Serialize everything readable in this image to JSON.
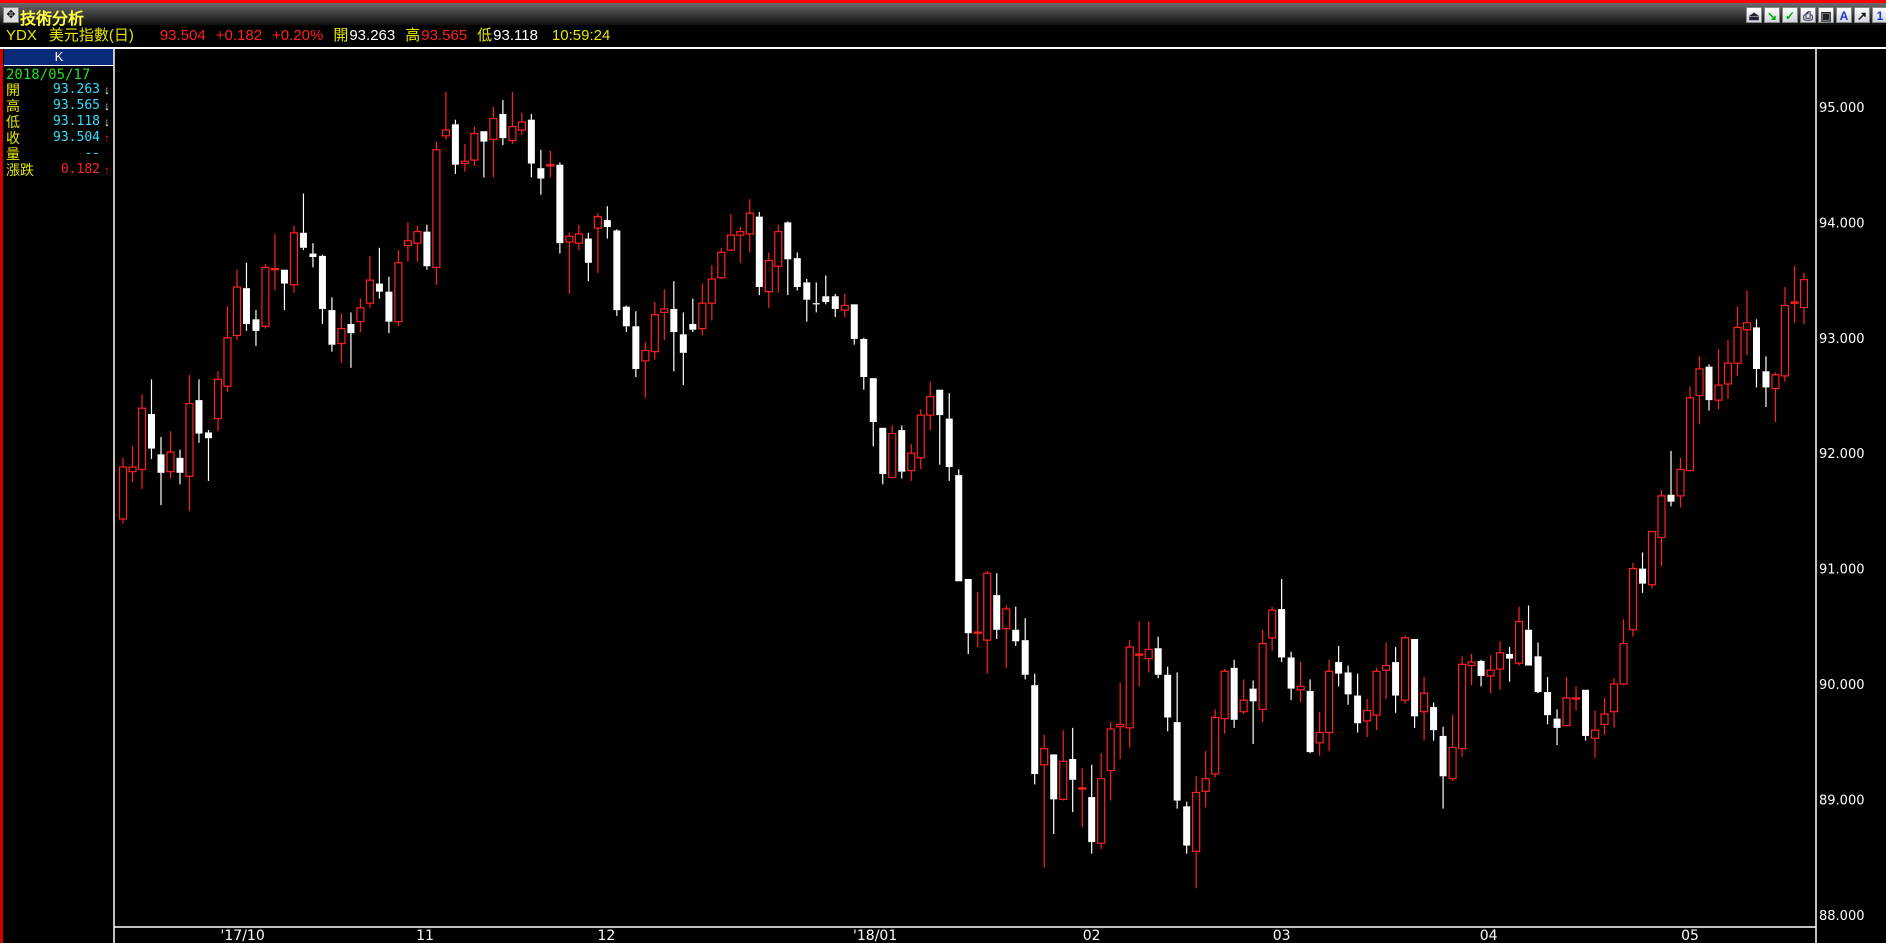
{
  "window": {
    "title": "技術分析"
  },
  "toolbar": {
    "icons": [
      "insert-icon",
      "trend-icon",
      "add-indicator-icon",
      "print-icon",
      "save-icon",
      "font-icon",
      "draw-icon",
      "number-one-icon"
    ],
    "font_glyph": "A",
    "one_glyph": "1"
  },
  "quote": {
    "symbol": "YDX",
    "name": "美元指數(日)",
    "last": "93.504",
    "change": "+0.182",
    "change_pct": "+0.20%",
    "open_label": "開",
    "open": "93.263",
    "high_label": "高",
    "high": "93.565",
    "low_label": "低",
    "low": "93.118",
    "time": "10:59:24"
  },
  "panel": {
    "header": "K",
    "date": "2018/05/17",
    "rows": [
      {
        "label": "開",
        "value": "93.263",
        "arrow": "↓"
      },
      {
        "label": "高",
        "value": "93.565",
        "arrow": "↓"
      },
      {
        "label": "低",
        "value": "93.118",
        "arrow": "↓"
      },
      {
        "label": "收",
        "value": "93.504",
        "arrow": "↑"
      },
      {
        "label": "量",
        "value": "--",
        "arrow": ""
      },
      {
        "label": "漲跌",
        "value": "0.182",
        "arrow": "↑"
      }
    ]
  },
  "colors": {
    "up": "#ff2020",
    "down": "#ffffff",
    "background": "#000000",
    "accent": "#e6e600"
  },
  "chart_data": {
    "type": "candlestick",
    "ylim": [
      88,
      95.5
    ],
    "y_ticks": [
      "95.000",
      "94.000",
      "93.000",
      "92.000",
      "91.000",
      "90.000",
      "89.000",
      "88.000"
    ],
    "x_ticks": [
      {
        "label": "'17/10",
        "index": 12.6
      },
      {
        "label": "11",
        "index": 31.8
      },
      {
        "label": "12",
        "index": 50.9
      },
      {
        "label": "'18/01",
        "index": 79.2
      },
      {
        "label": "02",
        "index": 102
      },
      {
        "label": "03",
        "index": 122
      },
      {
        "label": "04",
        "index": 143.8
      },
      {
        "label": "05",
        "index": 165
      }
    ],
    "ohlc_fields": [
      "open",
      "high",
      "low",
      "close"
    ],
    "ohlc": [
      [
        91.43,
        91.96,
        91.39,
        91.88
      ],
      [
        91.84,
        92.06,
        91.75,
        91.88
      ],
      [
        91.86,
        92.51,
        91.69,
        92.39
      ],
      [
        92.34,
        92.64,
        91.95,
        92.04
      ],
      [
        91.99,
        92.14,
        91.55,
        91.83
      ],
      [
        91.84,
        92.19,
        91.78,
        92.01
      ],
      [
        91.96,
        92.03,
        91.73,
        91.83
      ],
      [
        91.8,
        92.68,
        91.5,
        92.43
      ],
      [
        92.46,
        92.64,
        92.09,
        92.17
      ],
      [
        92.18,
        92.2,
        91.76,
        92.13
      ],
      [
        92.3,
        92.71,
        92.19,
        92.64
      ],
      [
        92.58,
        93.27,
        92.53,
        93.0
      ],
      [
        93.02,
        93.59,
        92.98,
        93.44
      ],
      [
        93.43,
        93.65,
        93.06,
        93.12
      ],
      [
        93.16,
        93.24,
        92.93,
        93.06
      ],
      [
        93.1,
        93.64,
        93.08,
        93.61
      ],
      [
        93.59,
        93.9,
        93.41,
        93.6
      ],
      [
        93.59,
        93.59,
        93.24,
        93.47
      ],
      [
        93.46,
        93.97,
        93.39,
        93.91
      ],
      [
        93.91,
        94.25,
        93.76,
        93.78
      ],
      [
        93.73,
        93.82,
        93.61,
        93.7
      ],
      [
        93.71,
        93.72,
        93.12,
        93.25
      ],
      [
        93.24,
        93.35,
        92.88,
        92.94
      ],
      [
        92.95,
        93.21,
        92.78,
        93.08
      ],
      [
        93.12,
        93.22,
        92.74,
        93.04
      ],
      [
        93.14,
        93.34,
        93.05,
        93.26
      ],
      [
        93.3,
        93.71,
        93.26,
        93.5
      ],
      [
        93.47,
        93.78,
        93.34,
        93.4
      ],
      [
        93.4,
        93.53,
        93.04,
        93.14
      ],
      [
        93.14,
        93.76,
        93.1,
        93.65
      ],
      [
        93.8,
        94.0,
        93.66,
        93.84
      ],
      [
        93.82,
        93.97,
        93.66,
        93.92
      ],
      [
        93.92,
        93.98,
        93.59,
        93.62
      ],
      [
        93.61,
        94.7,
        93.46,
        94.63
      ],
      [
        94.75,
        95.13,
        94.72,
        94.8
      ],
      [
        94.85,
        94.89,
        94.42,
        94.5
      ],
      [
        94.51,
        94.68,
        94.44,
        94.53
      ],
      [
        94.54,
        94.83,
        94.49,
        94.77
      ],
      [
        94.79,
        94.79,
        94.39,
        94.7
      ],
      [
        94.72,
        95.0,
        94.39,
        94.9
      ],
      [
        94.94,
        95.06,
        94.67,
        94.73
      ],
      [
        94.71,
        95.13,
        94.68,
        94.83
      ],
      [
        94.8,
        94.95,
        94.76,
        94.87
      ],
      [
        94.89,
        94.94,
        94.39,
        94.51
      ],
      [
        94.47,
        94.63,
        94.24,
        94.38
      ],
      [
        94.49,
        94.62,
        94.39,
        94.5
      ],
      [
        94.5,
        94.52,
        93.73,
        93.82
      ],
      [
        93.83,
        93.91,
        93.38,
        93.88
      ],
      [
        93.82,
        93.98,
        93.76,
        93.9
      ],
      [
        93.86,
        93.91,
        93.49,
        93.65
      ],
      [
        93.95,
        94.08,
        93.56,
        94.05
      ],
      [
        94.02,
        94.14,
        93.86,
        93.96
      ],
      [
        93.93,
        93.94,
        93.19,
        93.24
      ],
      [
        93.27,
        93.28,
        93.05,
        93.1
      ],
      [
        93.1,
        93.23,
        92.66,
        92.73
      ],
      [
        92.8,
        92.96,
        92.48,
        92.89
      ],
      [
        92.88,
        93.31,
        92.81,
        93.2
      ],
      [
        93.22,
        93.42,
        92.98,
        93.25
      ],
      [
        93.25,
        93.49,
        92.71,
        93.05
      ],
      [
        93.03,
        93.22,
        92.59,
        92.87
      ],
      [
        93.12,
        93.34,
        93.05,
        93.07
      ],
      [
        93.08,
        93.47,
        93.02,
        93.3
      ],
      [
        93.3,
        93.63,
        93.15,
        93.51
      ],
      [
        93.52,
        93.78,
        93.51,
        93.74
      ],
      [
        93.76,
        94.07,
        93.76,
        93.89
      ],
      [
        93.89,
        93.96,
        93.65,
        93.92
      ],
      [
        93.9,
        94.2,
        93.74,
        94.08
      ],
      [
        94.05,
        94.09,
        93.37,
        93.44
      ],
      [
        93.4,
        93.74,
        93.26,
        93.67
      ],
      [
        93.62,
        93.98,
        93.39,
        93.92
      ],
      [
        94.0,
        94.01,
        93.37,
        93.68
      ],
      [
        93.69,
        93.74,
        93.41,
        93.44
      ],
      [
        93.48,
        93.51,
        93.14,
        93.33
      ],
      [
        93.3,
        93.48,
        93.22,
        93.29
      ],
      [
        93.36,
        93.54,
        93.29,
        93.31
      ],
      [
        93.36,
        93.38,
        93.18,
        93.25
      ],
      [
        93.24,
        93.38,
        93.18,
        93.28
      ],
      [
        93.29,
        93.29,
        92.94,
        92.99
      ],
      [
        92.99,
        93.0,
        92.55,
        92.66
      ],
      [
        92.65,
        92.65,
        92.06,
        92.27
      ],
      [
        92.22,
        92.22,
        91.73,
        91.82
      ],
      [
        91.79,
        92.24,
        91.78,
        92.17
      ],
      [
        92.2,
        92.24,
        91.78,
        91.84
      ],
      [
        91.85,
        92.08,
        91.76,
        92.0
      ],
      [
        91.96,
        92.38,
        91.86,
        92.33
      ],
      [
        92.33,
        92.62,
        92.2,
        92.49
      ],
      [
        92.55,
        92.55,
        91.9,
        92.33
      ],
      [
        92.3,
        92.52,
        91.76,
        91.88
      ],
      [
        91.81,
        91.86,
        90.89,
        90.89
      ],
      [
        90.91,
        90.91,
        90.26,
        90.44
      ],
      [
        90.44,
        90.8,
        90.32,
        90.45
      ],
      [
        90.38,
        90.98,
        90.09,
        90.96
      ],
      [
        90.77,
        90.96,
        90.39,
        90.47
      ],
      [
        90.48,
        90.68,
        90.14,
        90.65
      ],
      [
        90.47,
        90.67,
        90.33,
        90.37
      ],
      [
        90.38,
        90.57,
        90.04,
        90.08
      ],
      [
        89.99,
        90.09,
        89.13,
        89.22
      ],
      [
        89.3,
        89.56,
        88.41,
        89.44
      ],
      [
        89.39,
        89.39,
        88.7,
        89.0
      ],
      [
        89.0,
        89.6,
        88.99,
        89.33
      ],
      [
        89.35,
        89.62,
        88.89,
        89.17
      ],
      [
        89.09,
        89.27,
        88.76,
        89.1
      ],
      [
        89.02,
        89.3,
        88.53,
        88.63
      ],
      [
        88.62,
        89.4,
        88.57,
        89.18
      ],
      [
        89.25,
        89.67,
        88.99,
        89.61
      ],
      [
        89.63,
        90.01,
        89.35,
        89.65
      ],
      [
        89.62,
        90.38,
        89.45,
        90.32
      ],
      [
        90.25,
        90.54,
        89.98,
        90.26
      ],
      [
        90.22,
        90.54,
        90.1,
        90.3
      ],
      [
        90.31,
        90.41,
        90.05,
        90.08
      ],
      [
        90.08,
        90.15,
        89.59,
        89.71
      ],
      [
        89.67,
        90.1,
        88.92,
        88.99
      ],
      [
        88.94,
        88.98,
        88.53,
        88.6
      ],
      [
        88.55,
        89.2,
        88.23,
        89.06
      ],
      [
        89.07,
        89.42,
        88.93,
        89.18
      ],
      [
        89.22,
        89.78,
        89.19,
        89.71
      ],
      [
        89.7,
        90.13,
        89.57,
        90.11
      ],
      [
        90.14,
        90.21,
        89.62,
        89.69
      ],
      [
        89.76,
        90.04,
        89.74,
        89.86
      ],
      [
        89.96,
        90.03,
        89.48,
        89.85
      ],
      [
        89.78,
        90.47,
        89.67,
        90.35
      ],
      [
        90.4,
        90.67,
        90.29,
        90.64
      ],
      [
        90.65,
        90.91,
        90.19,
        90.23
      ],
      [
        90.23,
        90.28,
        89.86,
        89.96
      ],
      [
        89.95,
        90.19,
        89.84,
        89.98
      ],
      [
        89.94,
        90.04,
        89.4,
        89.41
      ],
      [
        89.49,
        89.76,
        89.38,
        89.58
      ],
      [
        89.58,
        90.21,
        89.42,
        90.11
      ],
      [
        90.19,
        90.33,
        89.98,
        90.09
      ],
      [
        90.1,
        90.16,
        89.82,
        89.91
      ],
      [
        89.9,
        90.09,
        89.58,
        89.66
      ],
      [
        89.68,
        89.87,
        89.54,
        89.77
      ],
      [
        89.73,
        90.14,
        89.6,
        90.11
      ],
      [
        90.12,
        90.36,
        89.87,
        90.16
      ],
      [
        90.19,
        90.32,
        89.75,
        89.9
      ],
      [
        89.86,
        90.42,
        89.83,
        90.4
      ],
      [
        90.39,
        90.39,
        89.62,
        89.72
      ],
      [
        89.76,
        90.06,
        89.51,
        89.92
      ],
      [
        89.8,
        89.84,
        89.51,
        89.6
      ],
      [
        89.55,
        89.63,
        88.92,
        89.2
      ],
      [
        89.18,
        89.73,
        89.16,
        89.45
      ],
      [
        89.44,
        90.24,
        89.37,
        90.17
      ],
      [
        90.16,
        90.26,
        89.99,
        90.19
      ],
      [
        90.2,
        90.21,
        89.98,
        90.07
      ],
      [
        90.07,
        90.25,
        89.92,
        90.12
      ],
      [
        90.13,
        90.37,
        89.95,
        90.27
      ],
      [
        90.26,
        90.32,
        90.02,
        90.22
      ],
      [
        90.18,
        90.67,
        90.16,
        90.54
      ],
      [
        90.47,
        90.68,
        90.16,
        90.16
      ],
      [
        90.24,
        90.36,
        89.92,
        89.93
      ],
      [
        89.93,
        90.06,
        89.65,
        89.73
      ],
      [
        89.7,
        89.78,
        89.47,
        89.62
      ],
      [
        89.64,
        90.06,
        89.63,
        89.88
      ],
      [
        89.87,
        89.98,
        89.77,
        89.88
      ],
      [
        89.95,
        89.95,
        89.51,
        89.55
      ],
      [
        89.53,
        89.77,
        89.36,
        89.6
      ],
      [
        89.65,
        89.88,
        89.56,
        89.74
      ],
      [
        89.76,
        90.05,
        89.62,
        90.0
      ],
      [
        90.0,
        90.56,
        89.99,
        90.35
      ],
      [
        90.47,
        91.05,
        90.41,
        91.0
      ],
      [
        91.0,
        91.14,
        90.79,
        90.87
      ],
      [
        90.86,
        91.32,
        90.83,
        91.32
      ],
      [
        91.27,
        91.68,
        91.02,
        91.63
      ],
      [
        91.64,
        92.02,
        91.54,
        91.58
      ],
      [
        91.63,
        91.96,
        91.53,
        91.86
      ],
      [
        91.85,
        92.58,
        91.84,
        92.48
      ],
      [
        92.5,
        92.84,
        92.25,
        92.73
      ],
      [
        92.75,
        92.77,
        92.37,
        92.46
      ],
      [
        92.46,
        92.9,
        92.38,
        92.59
      ],
      [
        92.6,
        92.98,
        92.47,
        92.78
      ],
      [
        92.78,
        93.27,
        92.67,
        93.09
      ],
      [
        93.07,
        93.41,
        92.85,
        93.13
      ],
      [
        93.09,
        93.16,
        92.57,
        92.73
      ],
      [
        92.71,
        92.84,
        92.4,
        92.57
      ],
      [
        92.56,
        92.7,
        92.27,
        92.68
      ],
      [
        92.67,
        93.44,
        92.62,
        93.28
      ],
      [
        93.31,
        93.62,
        93.13,
        93.31
      ],
      [
        93.263,
        93.565,
        93.118,
        93.504
      ]
    ]
  }
}
